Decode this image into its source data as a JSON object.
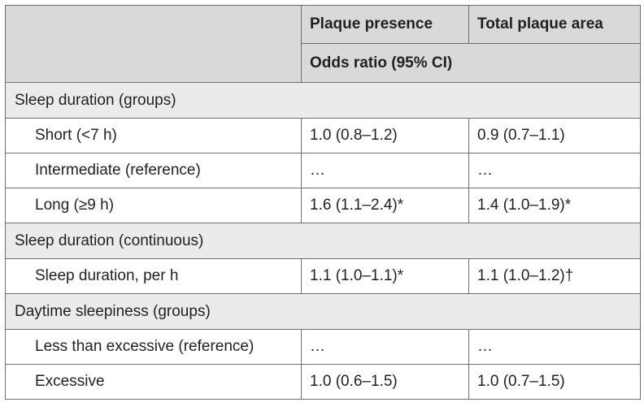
{
  "header": {
    "col2": "Plaque presence",
    "col3": "Total plaque area",
    "subheader": "Odds ratio (95% CI)"
  },
  "sections": [
    {
      "title": "Sleep duration (groups)",
      "rows": [
        {
          "label": "Short (<7 h)",
          "plaque_presence": "1.0 (0.8–1.2)",
          "total_plaque_area": "0.9 (0.7–1.1)"
        },
        {
          "label": "Intermediate (reference)",
          "plaque_presence": "…",
          "total_plaque_area": "…"
        },
        {
          "label": "Long (≥9 h)",
          "plaque_presence": "1.6 (1.1–2.4)*",
          "total_plaque_area": "1.4 (1.0–1.9)*"
        }
      ]
    },
    {
      "title": "Sleep duration (continuous)",
      "rows": [
        {
          "label": "Sleep duration, per h",
          "plaque_presence": "1.1 (1.0–1.1)*",
          "total_plaque_area": "1.1 (1.0–1.2)†"
        }
      ]
    },
    {
      "title": "Daytime sleepiness (groups)",
      "rows": [
        {
          "label": "Less than excessive (reference)",
          "plaque_presence": "…",
          "total_plaque_area": "…"
        },
        {
          "label": "Excessive",
          "plaque_presence": "1.0 (0.6–1.5)",
          "total_plaque_area": "1.0 (0.7–1.5)"
        }
      ]
    }
  ],
  "colors": {
    "header_bg": "#d9d9d9",
    "section_bg": "#ebebeb",
    "border": "#6d6e71",
    "text": "#231f20"
  }
}
